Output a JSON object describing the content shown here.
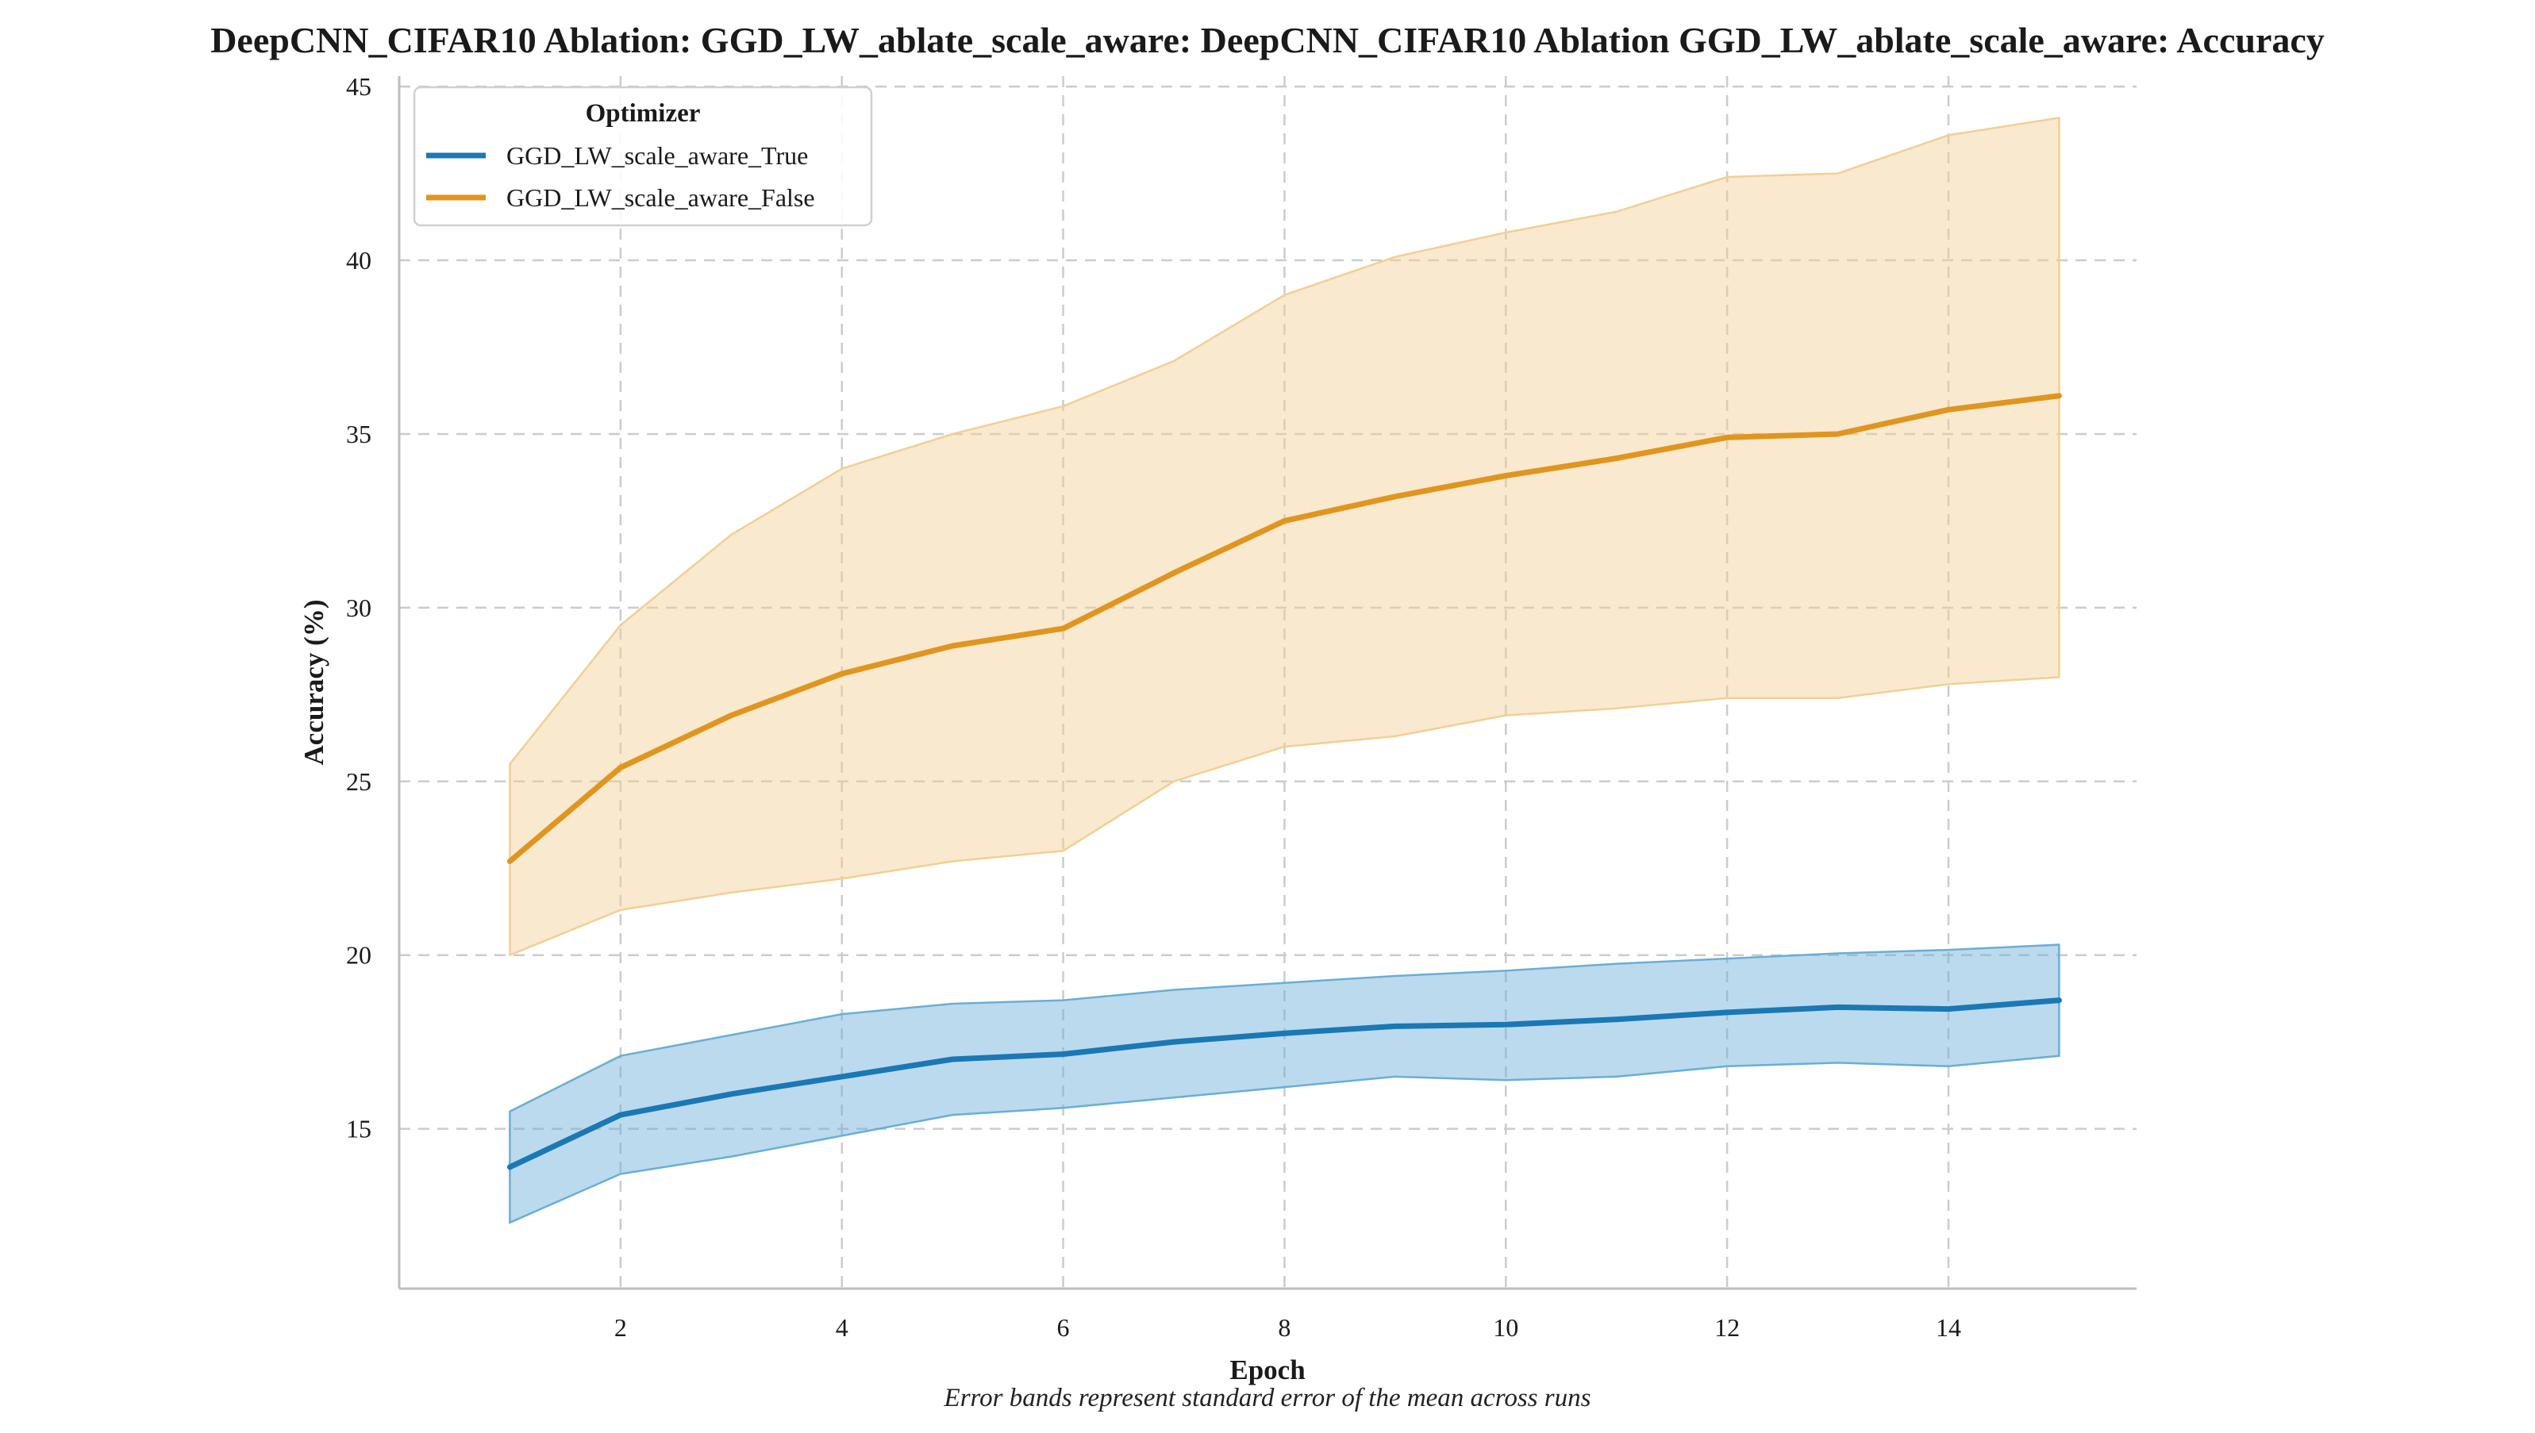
{
  "chart_data": {
    "type": "line",
    "title": "DeepCNN_CIFAR10 Ablation: GGD_LW_ablate_scale_aware: DeepCNN_CIFAR10 Ablation GGD_LW_ablate_scale_aware: Accuracy",
    "xlabel": "Epoch",
    "ylabel": "Accuracy (%)",
    "caption": "Error bands represent standard error of the mean across runs",
    "xlim": [
      0,
      15.7
    ],
    "ylim": [
      10.4,
      45.3
    ],
    "x_ticks": [
      2,
      4,
      6,
      8,
      10,
      12,
      14
    ],
    "y_ticks": [
      15,
      20,
      25,
      30,
      35,
      40,
      45
    ],
    "grid": true,
    "legend": {
      "title": "Optimizer",
      "placement": "top-left"
    },
    "x": [
      1,
      2,
      3,
      4,
      5,
      6,
      7,
      8,
      9,
      10,
      11,
      12,
      13,
      14,
      15
    ],
    "series": [
      {
        "name": "GGD_LW_scale_aware_True",
        "color": "#1a78b4",
        "band_color": "#6aaed6",
        "values": [
          13.9,
          15.4,
          16.0,
          16.5,
          17.0,
          17.15,
          17.5,
          17.75,
          17.95,
          18.0,
          18.15,
          18.35,
          18.5,
          18.45,
          18.7
        ],
        "lower": [
          12.3,
          13.7,
          14.2,
          14.8,
          15.4,
          15.6,
          15.9,
          16.2,
          16.5,
          16.4,
          16.5,
          16.8,
          16.9,
          16.8,
          17.1
        ],
        "upper": [
          15.5,
          17.1,
          17.7,
          18.3,
          18.6,
          18.7,
          19.0,
          19.2,
          19.4,
          19.55,
          19.75,
          19.9,
          20.05,
          20.15,
          20.3
        ]
      },
      {
        "name": "GGD_LW_scale_aware_False",
        "color": "#e0951f",
        "band_color": "#f2cf95",
        "values": [
          22.7,
          25.4,
          26.9,
          28.1,
          28.9,
          29.4,
          31.0,
          32.5,
          33.2,
          33.8,
          34.3,
          34.9,
          35.0,
          35.7,
          36.1
        ],
        "lower": [
          20.0,
          21.3,
          21.8,
          22.2,
          22.7,
          23.0,
          25.0,
          26.0,
          26.3,
          26.9,
          27.1,
          27.4,
          27.4,
          27.8,
          28.0
        ],
        "upper": [
          25.5,
          29.5,
          32.1,
          34.0,
          35.0,
          35.8,
          37.1,
          39.0,
          40.1,
          40.8,
          41.4,
          42.4,
          42.5,
          43.6,
          44.1
        ]
      }
    ]
  }
}
